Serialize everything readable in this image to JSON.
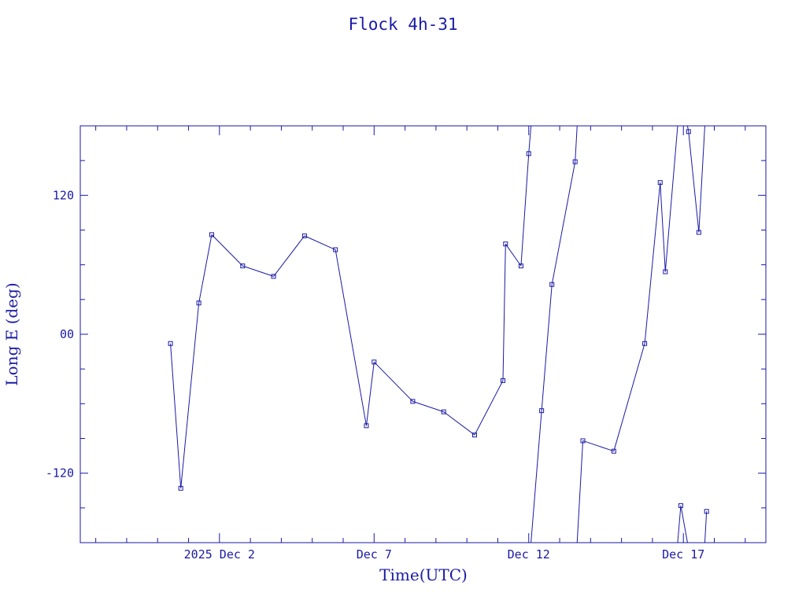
{
  "chart_data": {
    "type": "line",
    "title": "Flock 4h-31",
    "xlabel": "Time(UTC)",
    "ylabel": "Long E (deg)",
    "xlim": [
      "2025-11-27T12:00",
      "2025-12-19T16:00"
    ],
    "ylim": [
      -180,
      180
    ],
    "x_ticks": [
      {
        "label": "2025 Dec  2",
        "x": "2025-12-02T00:00"
      },
      {
        "label": "Dec  7",
        "x": "2025-12-07T00:00"
      },
      {
        "label": "Dec 12",
        "x": "2025-12-12T00:00"
      },
      {
        "label": "Dec 17",
        "x": "2025-12-17T00:00"
      }
    ],
    "y_ticks": [
      {
        "label": "120",
        "y": 120
      },
      {
        "label": "00",
        "y": 0
      },
      {
        "label": "-120",
        "y": -120
      }
    ],
    "grid": false,
    "series": [
      {
        "color": "#1a1aa6",
        "wrap": true,
        "points": [
          {
            "x": "2025-11-30T10:00",
            "y": -8
          },
          {
            "x": "2025-11-30T18:00",
            "y": -133
          },
          {
            "x": "2025-12-01T08:00",
            "y": 27
          },
          {
            "x": "2025-12-01T18:00",
            "y": 86
          },
          {
            "x": "2025-12-02T18:00",
            "y": 59
          },
          {
            "x": "2025-12-03T18:00",
            "y": 50
          },
          {
            "x": "2025-12-04T18:00",
            "y": 85
          },
          {
            "x": "2025-12-05T18:00",
            "y": 73
          },
          {
            "x": "2025-12-06T18:00",
            "y": -79
          },
          {
            "x": "2025-12-07T00:00",
            "y": -24
          },
          {
            "x": "2025-12-08T06:00",
            "y": -58
          },
          {
            "x": "2025-12-09T06:00",
            "y": -67
          },
          {
            "x": "2025-12-10T06:00",
            "y": -87
          },
          {
            "x": "2025-12-11T04:00",
            "y": -40
          },
          {
            "x": "2025-12-11T06:00",
            "y": 78
          },
          {
            "x": "2025-12-11T18:00",
            "y": 59
          },
          {
            "x": "2025-12-12T00:00",
            "y": 156
          },
          {
            "x": "2025-12-12T10:00",
            "y": -66
          },
          {
            "x": "2025-12-12T18:00",
            "y": 43
          },
          {
            "x": "2025-12-13T12:00",
            "y": 149
          },
          {
            "x": "2025-12-13T18:00",
            "y": -92
          },
          {
            "x": "2025-12-14T18:00",
            "y": -101
          },
          {
            "x": "2025-12-15T18:00",
            "y": -8
          },
          {
            "x": "2025-12-16T06:00",
            "y": 131
          },
          {
            "x": "2025-12-16T10:00",
            "y": 54
          },
          {
            "x": "2025-12-16T22:00",
            "y": -148
          },
          {
            "x": "2025-12-17T04:00",
            "y": 175
          },
          {
            "x": "2025-12-17T12:00",
            "y": 88
          },
          {
            "x": "2025-12-17T18:00",
            "y": -153
          }
        ]
      }
    ]
  }
}
